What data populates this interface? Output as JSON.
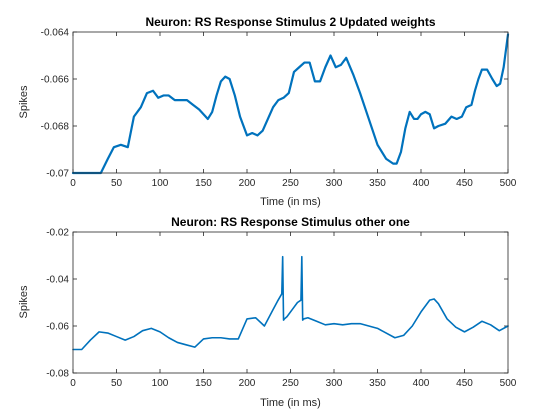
{
  "chart_data": [
    {
      "type": "line",
      "title": "Neuron: RS Response Stimulus 2 Updated weights",
      "xlabel": "Time (in ms)",
      "ylabel": "Spikes",
      "xlim": [
        0,
        500
      ],
      "ylim": [
        -0.07,
        -0.064
      ],
      "xticks": [
        0,
        50,
        100,
        150,
        200,
        250,
        300,
        350,
        400,
        450,
        500
      ],
      "yticks": [
        -0.07,
        -0.068,
        -0.066,
        -0.064
      ],
      "xtick_labels": [
        "0",
        "50",
        "100",
        "150",
        "200",
        "250",
        "300",
        "350",
        "400",
        "450",
        "500"
      ],
      "ytick_labels": [
        "-0.07",
        "-0.068",
        "-0.066",
        "-0.064"
      ],
      "grid": false,
      "color": "#0072BD",
      "series": [
        {
          "x": [
            0,
            20,
            32,
            40,
            47,
            55,
            63,
            70,
            78,
            85,
            92,
            98,
            104,
            110,
            117,
            124,
            131,
            138,
            145,
            150,
            155,
            160,
            165,
            170,
            175,
            180,
            186,
            192,
            200,
            206,
            212,
            218,
            224,
            230,
            236,
            242,
            248,
            254,
            260,
            266,
            272,
            278,
            284,
            290,
            296,
            302,
            308,
            314,
            322,
            330,
            340,
            350,
            360,
            368,
            372,
            377,
            382,
            387,
            392,
            396,
            400,
            405,
            410,
            415,
            420,
            428,
            435,
            441,
            447,
            452,
            458,
            462,
            466,
            470,
            476,
            482,
            487,
            491,
            495,
            500
          ],
          "y": [
            -0.07,
            -0.07,
            -0.07,
            -0.0694,
            -0.0689,
            -0.0688,
            -0.0689,
            -0.0676,
            -0.0672,
            -0.0666,
            -0.0665,
            -0.0668,
            -0.0667,
            -0.0667,
            -0.0669,
            -0.0669,
            -0.0669,
            -0.0671,
            -0.0673,
            -0.0675,
            -0.0677,
            -0.0674,
            -0.0667,
            -0.0661,
            -0.0659,
            -0.066,
            -0.0667,
            -0.0676,
            -0.0684,
            -0.0683,
            -0.0684,
            -0.0682,
            -0.0677,
            -0.0672,
            -0.0669,
            -0.0668,
            -0.0666,
            -0.0657,
            -0.0655,
            -0.0653,
            -0.0653,
            -0.0661,
            -0.0661,
            -0.0655,
            -0.065,
            -0.0655,
            -0.0654,
            -0.0651,
            -0.0658,
            -0.0666,
            -0.0677,
            -0.0688,
            -0.0694,
            -0.0696,
            -0.0696,
            -0.0691,
            -0.0681,
            -0.0674,
            -0.0677,
            -0.0677,
            -0.0675,
            -0.0674,
            -0.0675,
            -0.0681,
            -0.068,
            -0.0679,
            -0.0676,
            -0.0677,
            -0.0676,
            -0.0672,
            -0.0671,
            -0.0665,
            -0.066,
            -0.0656,
            -0.0656,
            -0.066,
            -0.0663,
            -0.0662,
            -0.0655,
            -0.0641
          ]
        }
      ]
    },
    {
      "type": "line",
      "title": "Neuron: RS Response Stimulus other one",
      "xlabel": "Time (in ms)",
      "ylabel": "Spikes",
      "xlim": [
        0,
        500
      ],
      "ylim": [
        -0.08,
        -0.02
      ],
      "xticks": [
        0,
        50,
        100,
        150,
        200,
        250,
        300,
        350,
        400,
        450,
        500
      ],
      "yticks": [
        -0.08,
        -0.06,
        -0.04,
        -0.02
      ],
      "xtick_labels": [
        "0",
        "50",
        "100",
        "150",
        "200",
        "250",
        "300",
        "350",
        "400",
        "450",
        "500"
      ],
      "ytick_labels": [
        "-0.08",
        "-0.06",
        "-0.04",
        "-0.02"
      ],
      "grid": false,
      "color": "#0072BD",
      "series": [
        {
          "x": [
            0,
            10,
            20,
            30,
            40,
            50,
            60,
            70,
            80,
            90,
            100,
            110,
            120,
            130,
            140,
            150,
            160,
            170,
            180,
            190,
            200,
            210,
            220,
            230,
            235,
            240,
            241,
            242,
            243,
            246,
            252,
            258,
            262,
            263,
            264,
            265,
            270,
            280,
            290,
            300,
            310,
            320,
            330,
            340,
            350,
            360,
            370,
            380,
            390,
            400,
            410,
            415,
            420,
            430,
            440,
            450,
            460,
            470,
            480,
            490,
            500
          ],
          "y": [
            -0.07,
            -0.07,
            -0.066,
            -0.0625,
            -0.063,
            -0.0645,
            -0.066,
            -0.0645,
            -0.062,
            -0.061,
            -0.0625,
            -0.065,
            -0.067,
            -0.068,
            -0.069,
            -0.0655,
            -0.065,
            -0.065,
            -0.0655,
            -0.0655,
            -0.057,
            -0.0565,
            -0.06,
            -0.053,
            -0.0495,
            -0.0463,
            -0.0305,
            -0.0575,
            -0.057,
            -0.056,
            -0.053,
            -0.05,
            -0.049,
            -0.0305,
            -0.0575,
            -0.057,
            -0.0565,
            -0.058,
            -0.0595,
            -0.059,
            -0.0595,
            -0.059,
            -0.059,
            -0.06,
            -0.061,
            -0.063,
            -0.065,
            -0.064,
            -0.06,
            -0.054,
            -0.049,
            -0.0485,
            -0.0505,
            -0.057,
            -0.0605,
            -0.0625,
            -0.0605,
            -0.058,
            -0.0595,
            -0.062,
            -0.06
          ]
        }
      ]
    }
  ]
}
